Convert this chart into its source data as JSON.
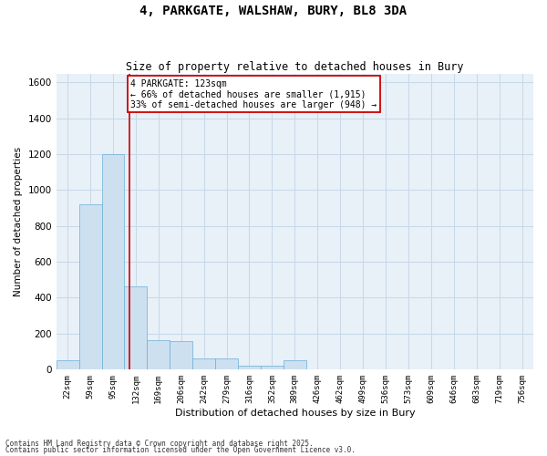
{
  "title_line1": "4, PARKGATE, WALSHAW, BURY, BL8 3DA",
  "title_line2": "Size of property relative to detached houses in Bury",
  "xlabel": "Distribution of detached houses by size in Bury",
  "ylabel": "Number of detached properties",
  "property_label": "4 PARKGATE: 123sqm",
  "annotation_line1": "← 66% of detached houses are smaller (1,915)",
  "annotation_line2": "33% of semi-detached houses are larger (948) →",
  "bar_color": "#cde0f0",
  "bar_edge_color": "#6aaed6",
  "vline_color": "#cc0000",
  "annotation_box_color": "#cc0000",
  "grid_color": "#c8d8e8",
  "background_color": "#e8f0f8",
  "categories": [
    "22sqm",
    "59sqm",
    "95sqm",
    "132sqm",
    "169sqm",
    "206sqm",
    "242sqm",
    "279sqm",
    "316sqm",
    "352sqm",
    "389sqm",
    "426sqm",
    "462sqm",
    "499sqm",
    "536sqm",
    "573sqm",
    "609sqm",
    "646sqm",
    "683sqm",
    "719sqm",
    "756sqm"
  ],
  "values": [
    50,
    920,
    1200,
    460,
    160,
    155,
    60,
    60,
    20,
    20,
    50,
    0,
    0,
    0,
    0,
    0,
    0,
    0,
    0,
    0,
    0
  ],
  "ylim": [
    0,
    1650
  ],
  "yticks": [
    0,
    200,
    400,
    600,
    800,
    1000,
    1200,
    1400,
    1600
  ],
  "vline_x": 2.73,
  "footnote1": "Contains HM Land Registry data © Crown copyright and database right 2025.",
  "footnote2": "Contains public sector information licensed under the Open Government Licence v3.0."
}
